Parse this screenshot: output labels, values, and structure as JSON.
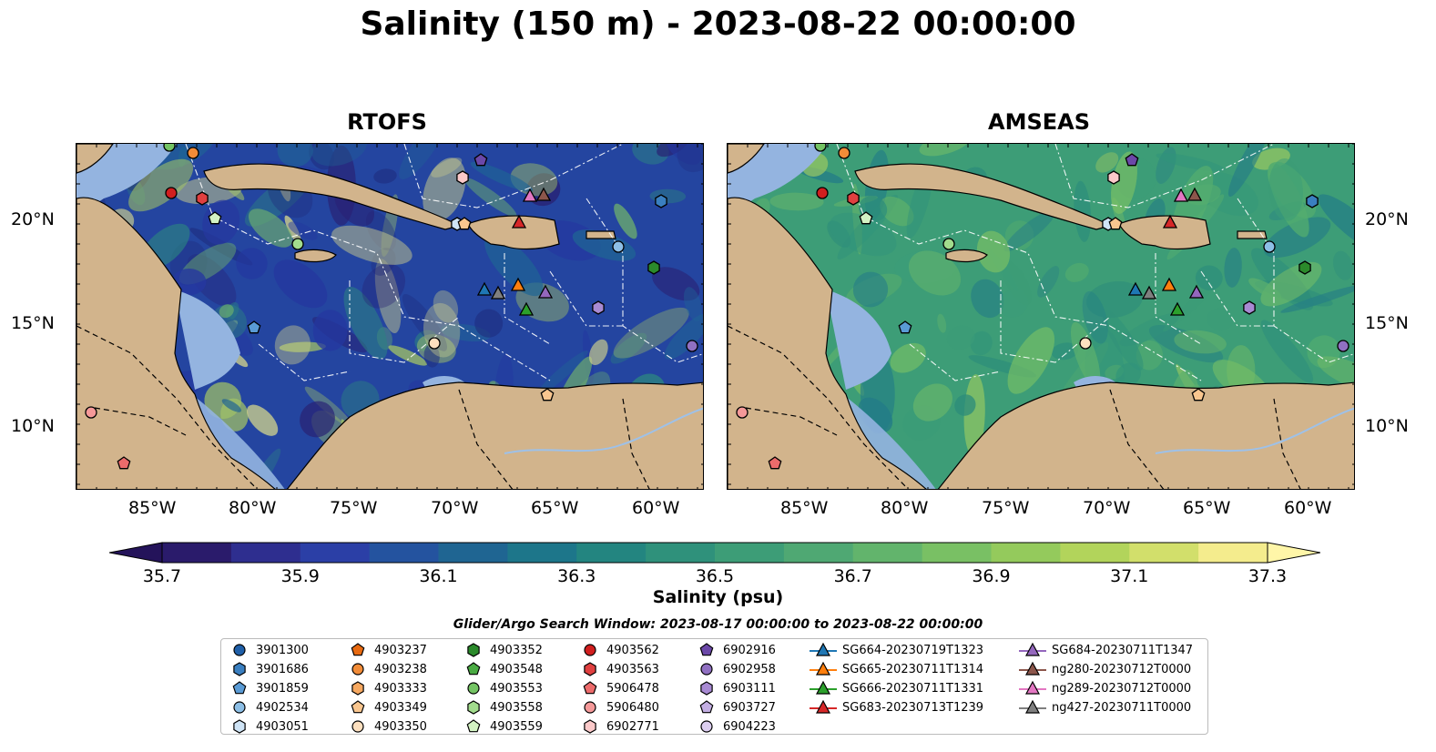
{
  "title": "Salinity (150 m) - 2023-08-22 00:00:00",
  "panels": [
    {
      "title": "RTOFS",
      "palette": "rtofs"
    },
    {
      "title": "AMSEAS",
      "palette": "amseas"
    }
  ],
  "lon_ticks": [
    "85°W",
    "80°W",
    "75°W",
    "70°W",
    "65°W",
    "60°W"
  ],
  "lat_ticks": [
    "20°N",
    "15°N",
    "10°N"
  ],
  "colorbar": {
    "label": "Salinity (psu)",
    "ticks": [
      "35.7",
      "35.9",
      "36.1",
      "36.3",
      "36.5",
      "36.7",
      "36.9",
      "37.1",
      "37.3"
    ],
    "colors": [
      "#2a1b6b",
      "#2e2e8f",
      "#2b3fa6",
      "#24539f",
      "#1f6592",
      "#1d768a",
      "#238580",
      "#2f917b",
      "#3d9d77",
      "#4fa873",
      "#62b46c",
      "#79c064",
      "#94ca5c",
      "#b2d45b",
      "#d2df6b",
      "#f4ec8d"
    ]
  },
  "search_window": "Glider/Argo Search Window: 2023-08-17 00:00:00 to 2023-08-22 00:00:00",
  "colors": {
    "land": "#d2b48c",
    "shelf": "#94b4e0"
  },
  "legend": [
    [
      {
        "label": "3901300",
        "marker": "circle",
        "color": "#1f5fa8"
      },
      {
        "label": "3901686",
        "marker": "hexagon",
        "color": "#3a7fc0"
      },
      {
        "label": "3901859",
        "marker": "pentagon",
        "color": "#5a9bd5"
      },
      {
        "label": "4902534",
        "marker": "circle",
        "color": "#8dbfe6"
      },
      {
        "label": "4903051",
        "marker": "hexagon",
        "color": "#cfe4f6"
      }
    ],
    [
      {
        "label": "4903237",
        "marker": "pentagon",
        "color": "#e86a10"
      },
      {
        "label": "4903238",
        "marker": "circle",
        "color": "#f28c38"
      },
      {
        "label": "4903333",
        "marker": "hexagon",
        "color": "#f6a860"
      },
      {
        "label": "4903349",
        "marker": "pentagon",
        "color": "#f9c68f"
      },
      {
        "label": "4903350",
        "marker": "circle",
        "color": "#fde0bf"
      }
    ],
    [
      {
        "label": "4903352",
        "marker": "hexagon",
        "color": "#2b8a2b"
      },
      {
        "label": "4903548",
        "marker": "pentagon",
        "color": "#4aab43"
      },
      {
        "label": "4903553",
        "marker": "circle",
        "color": "#74c464"
      },
      {
        "label": "4903558",
        "marker": "hexagon",
        "color": "#a2dc8d"
      },
      {
        "label": "4903559",
        "marker": "pentagon",
        "color": "#d3f2c3"
      }
    ],
    [
      {
        "label": "4903562",
        "marker": "circle",
        "color": "#d11f1f"
      },
      {
        "label": "4903563",
        "marker": "hexagon",
        "color": "#e04040"
      },
      {
        "label": "5906478",
        "marker": "pentagon",
        "color": "#ec6b6b"
      },
      {
        "label": "5906480",
        "marker": "circle",
        "color": "#f59999"
      },
      {
        "label": "6902771",
        "marker": "hexagon",
        "color": "#fbc9c9"
      }
    ],
    [
      {
        "label": "6902916",
        "marker": "pentagon",
        "color": "#6b48a8"
      },
      {
        "label": "6902958",
        "marker": "circle",
        "color": "#9070c2"
      },
      {
        "label": "6903111",
        "marker": "hexagon",
        "color": "#a88ad3"
      },
      {
        "label": "6903727",
        "marker": "pentagon",
        "color": "#c3aee2"
      },
      {
        "label": "6904223",
        "marker": "circle",
        "color": "#dccef0"
      }
    ],
    [
      {
        "label": "SG664-20230719T1323",
        "marker": "triangle-line",
        "color": "#1f77b4"
      },
      {
        "label": "SG665-20230711T1314",
        "marker": "triangle-line",
        "color": "#ff7f0e"
      },
      {
        "label": "SG666-20230711T1331",
        "marker": "triangle-line",
        "color": "#2ca02c"
      },
      {
        "label": "SG683-20230713T1239",
        "marker": "triangle-line",
        "color": "#d62728"
      }
    ],
    [
      {
        "label": "SG684-20230711T1347",
        "marker": "triangle-line",
        "color": "#9467bd"
      },
      {
        "label": "ng280-20230712T0000",
        "marker": "triangle-line",
        "color": "#8c564b"
      },
      {
        "label": "ng289-20230712T0000",
        "marker": "triangle-line",
        "color": "#e377c2"
      },
      {
        "label": "ng427-20230711T0000",
        "marker": "triangle-line",
        "color": "#7f7f7f"
      }
    ]
  ]
}
